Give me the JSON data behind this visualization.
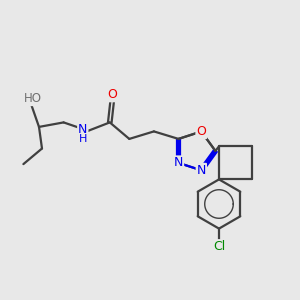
{
  "bg_color": "#e8e8e8",
  "bond_color": "#404040",
  "bond_lw": 1.6,
  "figsize": [
    3.0,
    3.0
  ],
  "dpi": 100,
  "colors": {
    "N": "#0000ee",
    "O": "#ee0000",
    "Cl": "#008800",
    "C": "#404040",
    "H_gray": "#707070"
  }
}
